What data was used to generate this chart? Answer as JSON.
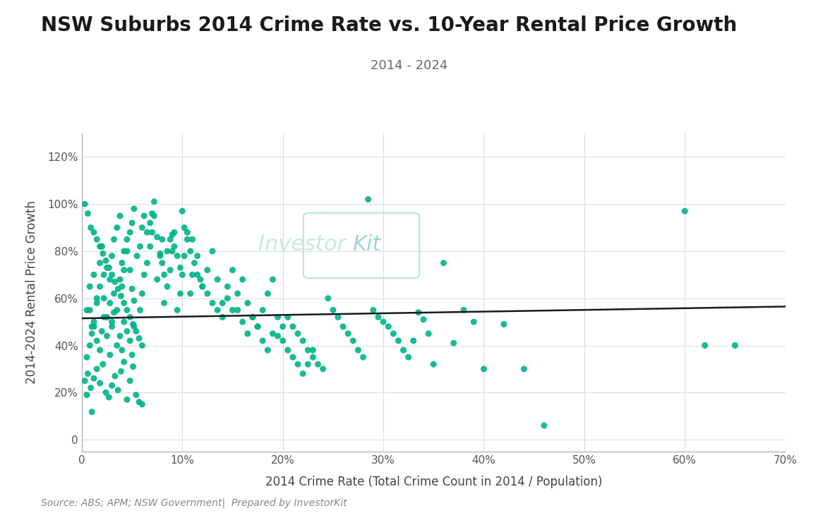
{
  "title": "NSW Suburbs 2014 Crime Rate vs. 10-Year Rental Price Growth",
  "subtitle": "2014 - 2024",
  "xlabel": "2014 Crime Rate (Total Crime Count in 2014 / Population)",
  "ylabel": "2014-2024 Rental Price Growth",
  "source": "Source: ABS; APM; NSW Government|  Prepared by InvestorKit",
  "dot_color": "#00B388",
  "trend_color": "#1a1a1a",
  "xlim": [
    0,
    0.7
  ],
  "ylim": [
    -0.05,
    1.3
  ],
  "scatter_x": [
    0.01,
    0.005,
    0.008,
    0.012,
    0.015,
    0.018,
    0.022,
    0.025,
    0.028,
    0.03,
    0.032,
    0.035,
    0.038,
    0.04,
    0.042,
    0.045,
    0.048,
    0.05,
    0.052,
    0.055,
    0.005,
    0.008,
    0.01,
    0.012,
    0.015,
    0.018,
    0.02,
    0.022,
    0.025,
    0.028,
    0.03,
    0.032,
    0.035,
    0.038,
    0.04,
    0.042,
    0.045,
    0.048,
    0.05,
    0.052,
    0.005,
    0.008,
    0.01,
    0.012,
    0.015,
    0.018,
    0.02,
    0.022,
    0.025,
    0.028,
    0.03,
    0.032,
    0.035,
    0.038,
    0.04,
    0.042,
    0.045,
    0.048,
    0.05,
    0.052,
    0.003,
    0.006,
    0.009,
    0.012,
    0.015,
    0.018,
    0.021,
    0.024,
    0.027,
    0.03,
    0.033,
    0.036,
    0.039,
    0.042,
    0.045,
    0.048,
    0.051,
    0.054,
    0.057,
    0.06,
    0.003,
    0.006,
    0.009,
    0.012,
    0.015,
    0.018,
    0.021,
    0.024,
    0.027,
    0.03,
    0.033,
    0.036,
    0.039,
    0.042,
    0.045,
    0.048,
    0.051,
    0.054,
    0.057,
    0.06,
    0.058,
    0.06,
    0.062,
    0.065,
    0.068,
    0.07,
    0.072,
    0.075,
    0.078,
    0.08,
    0.082,
    0.085,
    0.088,
    0.09,
    0.092,
    0.095,
    0.098,
    0.1,
    0.102,
    0.105,
    0.058,
    0.06,
    0.062,
    0.065,
    0.068,
    0.07,
    0.072,
    0.075,
    0.078,
    0.08,
    0.082,
    0.085,
    0.088,
    0.09,
    0.092,
    0.095,
    0.098,
    0.1,
    0.102,
    0.105,
    0.108,
    0.11,
    0.112,
    0.115,
    0.118,
    0.12,
    0.125,
    0.13,
    0.135,
    0.14,
    0.108,
    0.11,
    0.115,
    0.12,
    0.125,
    0.13,
    0.135,
    0.14,
    0.145,
    0.15,
    0.145,
    0.15,
    0.155,
    0.16,
    0.165,
    0.17,
    0.175,
    0.18,
    0.185,
    0.19,
    0.155,
    0.16,
    0.165,
    0.17,
    0.175,
    0.18,
    0.185,
    0.19,
    0.195,
    0.2,
    0.195,
    0.2,
    0.205,
    0.21,
    0.215,
    0.22,
    0.225,
    0.23,
    0.205,
    0.21,
    0.215,
    0.22,
    0.225,
    0.23,
    0.235,
    0.24,
    0.245,
    0.25,
    0.255,
    0.26,
    0.265,
    0.27,
    0.275,
    0.28,
    0.285,
    0.29,
    0.295,
    0.3,
    0.305,
    0.31,
    0.315,
    0.32,
    0.325,
    0.33,
    0.335,
    0.34,
    0.345,
    0.35,
    0.36,
    0.37,
    0.38,
    0.39,
    0.4,
    0.42,
    0.44,
    0.46,
    0.6,
    0.62,
    0.65
  ],
  "scatter_y": [
    0.118,
    0.19,
    0.55,
    0.48,
    0.6,
    0.65,
    0.7,
    0.73,
    0.58,
    0.5,
    0.62,
    0.55,
    0.68,
    0.75,
    0.8,
    0.85,
    0.72,
    0.64,
    0.59,
    0.78,
    0.55,
    0.65,
    0.48,
    0.7,
    0.58,
    0.75,
    0.82,
    0.6,
    0.52,
    0.68,
    0.78,
    0.85,
    0.9,
    0.95,
    0.65,
    0.72,
    0.8,
    0.88,
    0.92,
    0.98,
    0.35,
    0.4,
    0.45,
    0.5,
    0.42,
    0.38,
    0.46,
    0.52,
    0.44,
    0.36,
    0.48,
    0.54,
    0.4,
    0.44,
    0.38,
    0.5,
    0.46,
    0.42,
    0.36,
    0.48,
    1.0,
    0.96,
    0.9,
    0.88,
    0.85,
    0.82,
    0.79,
    0.76,
    0.73,
    0.7,
    0.67,
    0.64,
    0.61,
    0.58,
    0.55,
    0.52,
    0.49,
    0.46,
    0.43,
    0.4,
    0.25,
    0.28,
    0.22,
    0.26,
    0.3,
    0.24,
    0.32,
    0.2,
    0.18,
    0.23,
    0.27,
    0.21,
    0.29,
    0.33,
    0.17,
    0.25,
    0.31,
    0.19,
    0.16,
    0.15,
    0.82,
    0.9,
    0.95,
    0.88,
    0.92,
    0.96,
    1.01,
    0.86,
    0.79,
    0.75,
    0.7,
    0.8,
    0.85,
    0.87,
    0.82,
    0.78,
    0.73,
    0.97,
    0.9,
    0.88,
    0.55,
    0.62,
    0.7,
    0.75,
    0.82,
    0.88,
    0.95,
    0.68,
    0.78,
    0.85,
    0.58,
    0.65,
    0.72,
    0.8,
    0.88,
    0.55,
    0.62,
    0.7,
    0.78,
    0.85,
    0.8,
    0.85,
    0.75,
    0.7,
    0.68,
    0.65,
    0.62,
    0.58,
    0.55,
    0.52,
    0.62,
    0.7,
    0.78,
    0.65,
    0.72,
    0.8,
    0.68,
    0.58,
    0.65,
    0.72,
    0.6,
    0.55,
    0.62,
    0.68,
    0.58,
    0.52,
    0.48,
    0.55,
    0.62,
    0.68,
    0.55,
    0.5,
    0.45,
    0.52,
    0.48,
    0.42,
    0.38,
    0.45,
    0.52,
    0.48,
    0.44,
    0.42,
    0.38,
    0.35,
    0.32,
    0.28,
    0.32,
    0.38,
    0.52,
    0.48,
    0.45,
    0.42,
    0.38,
    0.35,
    0.32,
    0.3,
    0.6,
    0.55,
    0.52,
    0.48,
    0.45,
    0.42,
    0.38,
    0.35,
    1.02,
    0.55,
    0.52,
    0.5,
    0.48,
    0.45,
    0.42,
    0.38,
    0.35,
    0.42,
    0.54,
    0.51,
    0.45,
    0.32,
    0.75,
    0.41,
    0.55,
    0.5,
    0.3,
    0.49,
    0.3,
    0.06,
    0.97,
    0.4,
    0.4
  ],
  "trend_x": [
    0.0,
    0.7
  ],
  "trend_y": [
    0.515,
    0.565
  ],
  "xticks": [
    0.0,
    0.1,
    0.2,
    0.3,
    0.4,
    0.5,
    0.6,
    0.7
  ],
  "yticks": [
    0.0,
    0.2,
    0.4,
    0.6,
    0.8,
    1.0,
    1.2
  ],
  "xtick_labels": [
    "0",
    "10%",
    "20%",
    "30%",
    "40%",
    "50%",
    "60%",
    "70%"
  ],
  "ytick_labels": [
    "0",
    "20%",
    "40%",
    "60%",
    "80%",
    "100%",
    "120%"
  ],
  "background_color": "#ffffff",
  "grid_color": "#dddddd",
  "title_fontsize": 20,
  "subtitle_fontsize": 13,
  "axis_label_fontsize": 12,
  "tick_fontsize": 11,
  "source_fontsize": 10
}
